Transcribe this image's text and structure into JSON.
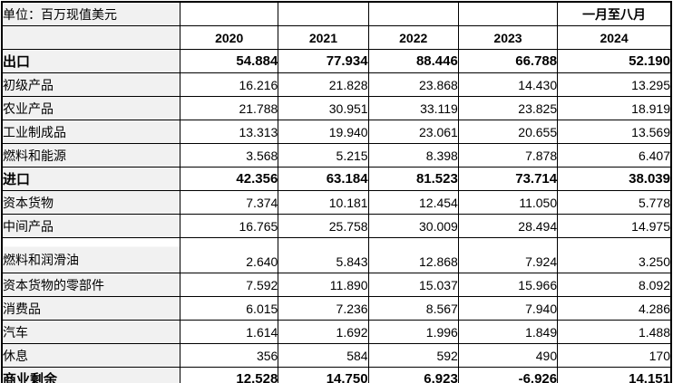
{
  "table": {
    "unit_label": "单位：百万现值美元",
    "period_label": "一月至八月",
    "columns": [
      "2020",
      "2021",
      "2022",
      "2023",
      "2024"
    ],
    "rows": [
      {
        "label": "出口",
        "bold": true,
        "values": [
          "54.884",
          "77.934",
          "88.446",
          "66.788",
          "52.190"
        ]
      },
      {
        "label": "初级产品",
        "bold": false,
        "values": [
          "16.216",
          "21.828",
          "23.868",
          "14.430",
          "13.295"
        ]
      },
      {
        "label": "农业产品",
        "bold": false,
        "values": [
          "21.788",
          "30.951",
          "33.119",
          "23.825",
          "18.919"
        ]
      },
      {
        "label": "工业制成品",
        "bold": false,
        "values": [
          "13.313",
          "19.940",
          "23.061",
          "20.655",
          "13.569"
        ]
      },
      {
        "label": "燃料和能源",
        "bold": false,
        "values": [
          "3.568",
          "5.215",
          "8.398",
          "7.878",
          "6.407"
        ]
      },
      {
        "label": "进口",
        "bold": true,
        "values": [
          "42.356",
          "63.184",
          "81.523",
          "73.714",
          "38.039"
        ]
      },
      {
        "label": "资本货物",
        "bold": false,
        "values": [
          "7.374",
          "10.181",
          "12.454",
          "11.050",
          "5.778"
        ]
      },
      {
        "label": "中间产品",
        "bold": false,
        "values": [
          "16.765",
          "25.758",
          "30.009",
          "28.494",
          "14.975"
        ]
      },
      {
        "label": "燃料和润滑油",
        "bold": false,
        "tall": true,
        "values": [
          "2.640",
          "5.843",
          "12.868",
          "7.924",
          "3.250"
        ]
      },
      {
        "label": "资本货物的零部件",
        "bold": false,
        "values": [
          "7.592",
          "11.890",
          "15.037",
          "15.966",
          "8.092"
        ]
      },
      {
        "label": "消费品",
        "bold": false,
        "values": [
          "6.015",
          "7.236",
          "8.567",
          "7.940",
          "4.286"
        ]
      },
      {
        "label": "汽车",
        "bold": false,
        "values": [
          "1.614",
          "1.692",
          "1.996",
          "1.849",
          "1.488"
        ]
      },
      {
        "label": "休息",
        "bold": false,
        "values": [
          "356",
          "584",
          "592",
          "490",
          "170"
        ]
      },
      {
        "label": "商业剩余",
        "bold": true,
        "values": [
          "12.528",
          "14.750",
          "6.923",
          "-6.926",
          "14.151"
        ]
      }
    ]
  },
  "colors": {
    "border": "#000000",
    "text": "#000000",
    "label_background": "#f1f1f1",
    "cell_background": "#ffffff"
  }
}
